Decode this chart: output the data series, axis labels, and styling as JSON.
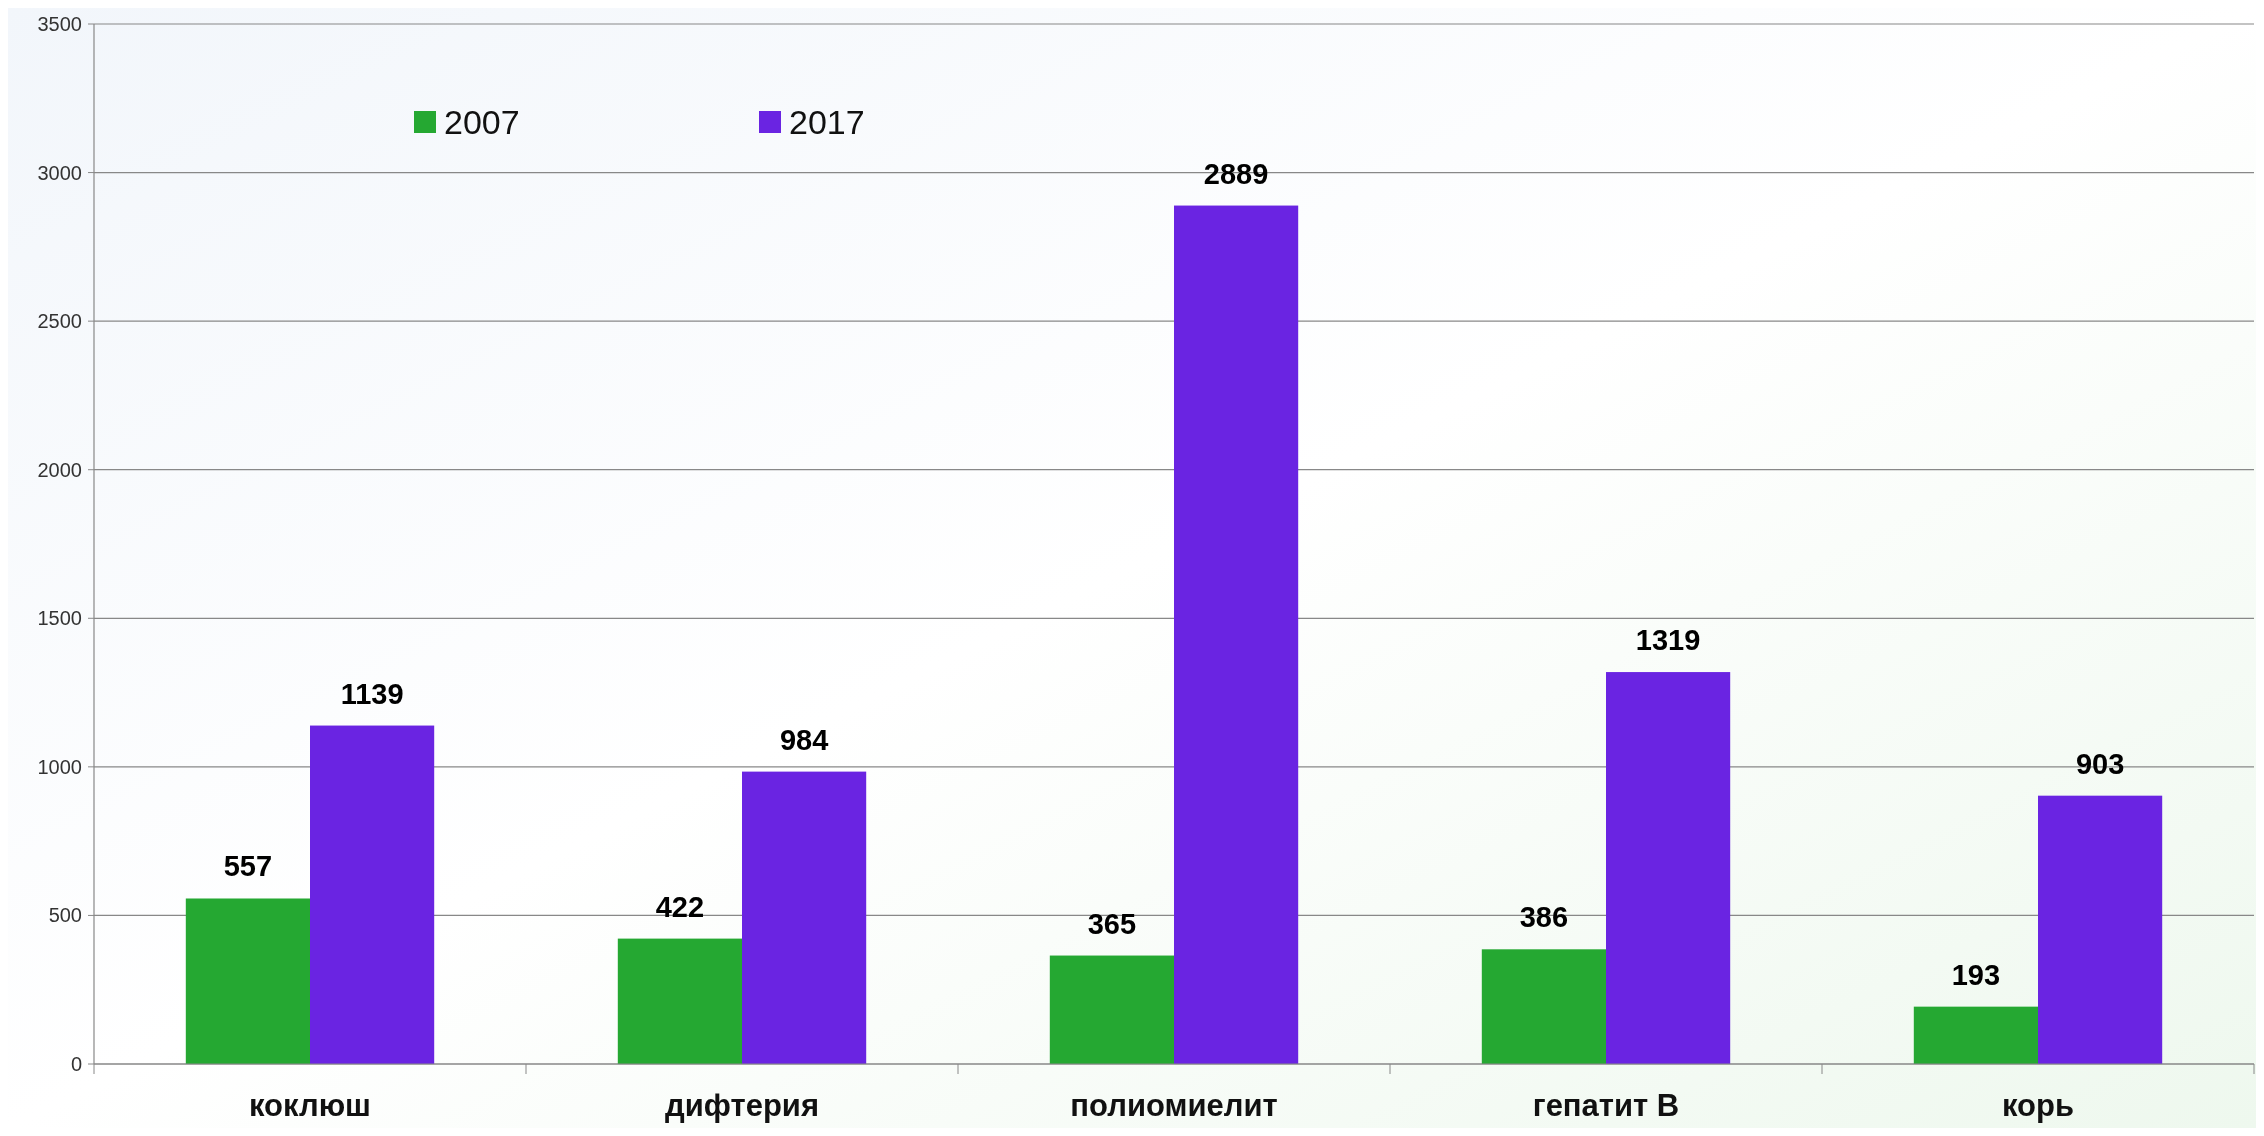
{
  "chart_data": {
    "type": "bar",
    "categories": [
      "коклюш",
      "дифтерия",
      "полиомиелит",
      "гепатит В",
      "корь"
    ],
    "series": [
      {
        "name": "2007",
        "color": "#25a832",
        "values": [
          557,
          422,
          365,
          386,
          193
        ]
      },
      {
        "name": "2017",
        "color": "#6a24e2",
        "values": [
          1139,
          984,
          2889,
          1319,
          903
        ]
      }
    ],
    "ylim": [
      0,
      3500
    ],
    "yticks": [
      0,
      500,
      1000,
      1500,
      2000,
      2500,
      3000,
      3500
    ],
    "grid": "y",
    "legend": "top left",
    "data_labels": true
  }
}
